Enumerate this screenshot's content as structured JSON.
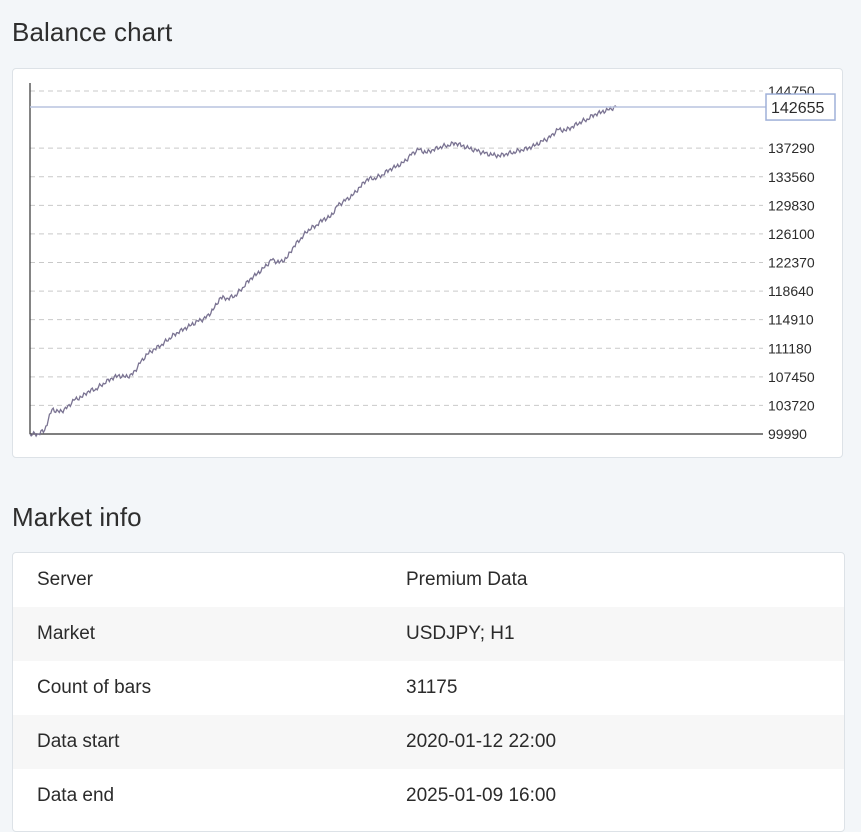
{
  "balance_section": {
    "title": "Balance chart"
  },
  "market_section": {
    "title": "Market info"
  },
  "chart_data": {
    "type": "line",
    "title": "",
    "xlabel": "",
    "ylabel": "",
    "ylim": [
      99990,
      144750
    ],
    "y_ticks": [
      "144750",
      "137290",
      "133560",
      "129830",
      "126100",
      "122370",
      "118640",
      "114910",
      "111180",
      "107450",
      "103720",
      "99990"
    ],
    "last_value": "142655",
    "grid": true,
    "line_color": "#7a7392",
    "x": [
      0,
      1,
      2,
      3,
      4,
      5,
      6,
      7,
      8,
      9,
      10,
      11,
      12,
      13,
      14,
      15,
      16,
      17,
      18,
      19,
      20,
      21,
      22,
      23,
      24,
      25,
      26,
      27,
      28,
      29,
      30,
      31,
      32,
      33,
      34,
      35,
      36,
      37,
      38,
      39,
      40,
      41,
      42,
      43,
      44,
      45,
      46,
      47,
      48,
      49,
      50,
      51,
      52,
      53,
      54,
      55,
      56,
      57,
      58,
      59,
      60,
      61,
      62,
      63,
      64,
      65,
      66,
      67,
      68,
      69,
      70,
      71,
      72,
      73,
      74,
      75,
      76,
      77,
      78,
      79,
      80,
      81,
      82,
      83,
      84,
      85,
      86,
      87,
      88,
      89,
      90,
      91,
      92,
      93,
      94,
      95,
      96,
      97,
      98,
      99,
      100
    ],
    "series": [
      {
        "values": [
          99990,
          100000,
          100500,
          103200,
          102800,
          103300,
          104400,
          104800,
          105600,
          105900,
          106600,
          107200,
          107600,
          107400,
          107700,
          109200,
          110400,
          111100,
          111700,
          112500,
          113200,
          113700,
          114200,
          114700,
          115100,
          116200,
          117800,
          117700,
          118100,
          119100,
          120200,
          120900,
          121700,
          122700,
          122300,
          122900,
          124500,
          125600,
          126700,
          127200,
          128000,
          128300,
          129800,
          130400,
          131100,
          132200,
          133300,
          133400,
          133800,
          134500,
          134900,
          135400,
          136400,
          137100,
          136700,
          137100,
          137500,
          137700,
          138000,
          137600,
          137200,
          136900,
          136600,
          136400,
          136300,
          136600,
          136800,
          137100,
          137300,
          137700,
          138200,
          138700,
          139700,
          139600,
          140100,
          140700,
          141100,
          141700,
          142000,
          142300,
          142655,
          142655,
          142655,
          142655,
          142655,
          142655,
          142655,
          142655,
          142655,
          142655,
          142655,
          142655,
          142655,
          142655,
          142655,
          142655,
          142655,
          142655,
          142655,
          142655,
          142655
        ]
      }
    ]
  },
  "market_info": {
    "rows": [
      {
        "label": "Server",
        "value": "Premium Data"
      },
      {
        "label": "Market",
        "value": "USDJPY; H1"
      },
      {
        "label": "Count of bars",
        "value": "31175"
      },
      {
        "label": "Data start",
        "value": "2020-01-12 22:00"
      },
      {
        "label": "Data end",
        "value": "2025-01-09 16:00"
      }
    ]
  }
}
